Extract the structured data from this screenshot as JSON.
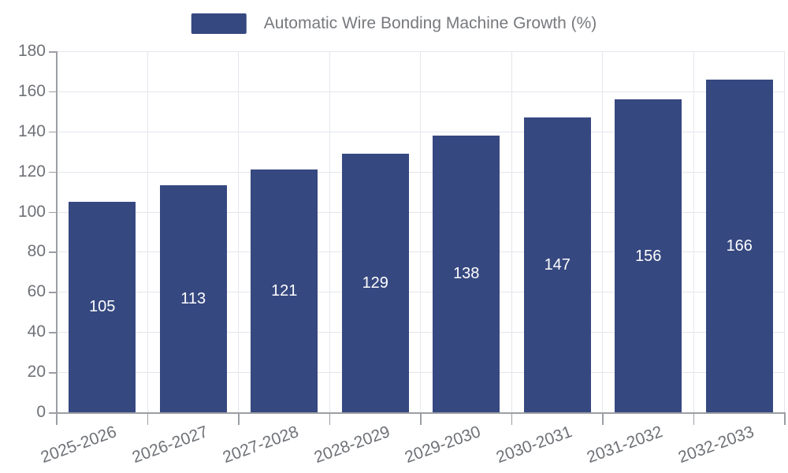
{
  "chart_data": {
    "type": "bar",
    "title": "Automatic Wire Bonding Machine Growth (%)",
    "categories": [
      "2025-2026",
      "2026-2027",
      "2027-2028",
      "2028-2029",
      "2029-2030",
      "2030-2031",
      "2031-2032",
      "2032-2033"
    ],
    "series": [
      {
        "name": "Automatic Wire Bonding Machine Growth (%)",
        "values": [
          105,
          113,
          121,
          129,
          138,
          147,
          156,
          166
        ]
      }
    ],
    "xlabel": "",
    "ylabel": "",
    "ylim": [
      0,
      180
    ],
    "y_ticks": [
      0,
      20,
      40,
      60,
      80,
      100,
      120,
      140,
      160,
      180
    ],
    "grid": true,
    "legend_position": "top-center",
    "value_label_position": "inside-center"
  },
  "style": {
    "bar_color": "#364880",
    "value_label_color": "#ffffff",
    "grid_color": "#e4e6ec",
    "axis_color": "#9b9ea4",
    "tick_label_color": "#6e7177",
    "legend_text_color": "#77797d",
    "background_color": "#ffffff"
  }
}
